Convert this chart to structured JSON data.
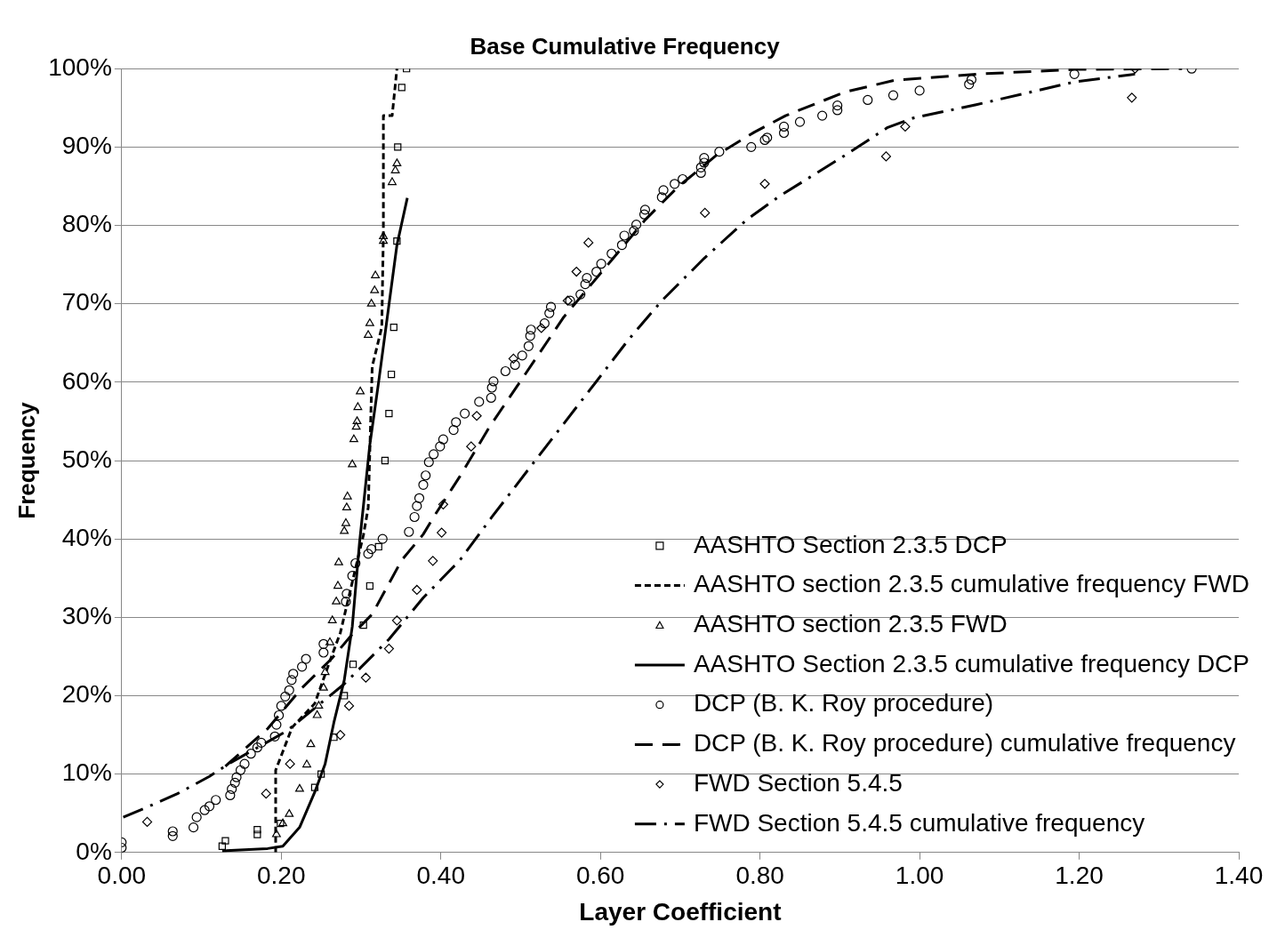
{
  "chart_data": {
    "type": "scatter",
    "title": "Base Cumulative Frequency",
    "xlabel": "Layer Coefficient",
    "ylabel": "Frequency",
    "xlim": [
      0,
      1.4
    ],
    "xticks": [
      {
        "value": 0,
        "label": "0.00"
      },
      {
        "value": 0.2,
        "label": "0.20"
      },
      {
        "value": 0.4,
        "label": "0.40"
      },
      {
        "value": 0.6,
        "label": "0.60"
      },
      {
        "value": 0.8,
        "label": "0.80"
      },
      {
        "value": 1,
        "label": "1.00"
      },
      {
        "value": 1.2,
        "label": "1.20"
      },
      {
        "value": 1.4,
        "label": "1.40"
      }
    ],
    "ylim": [
      0,
      100
    ],
    "yticks": [
      {
        "value": 0,
        "label": "0%"
      },
      {
        "value": 10,
        "label": "10%"
      },
      {
        "value": 20,
        "label": "20%"
      },
      {
        "value": 30,
        "label": "30%"
      },
      {
        "value": 40,
        "label": "40%"
      },
      {
        "value": 50,
        "label": "50%"
      },
      {
        "value": 60,
        "label": "60%"
      },
      {
        "value": 70,
        "label": "70%"
      },
      {
        "value": 80,
        "label": "80%"
      },
      {
        "value": 90,
        "label": "90%"
      },
      {
        "value": 100,
        "label": "100%"
      }
    ],
    "grid": "y",
    "legend": "bottom right",
    "series": [
      {
        "name": "AASHTO Section 2.3.5 DCP",
        "type": "scatter",
        "marker": "square",
        "color": "#000000",
        "x": [
          0.126,
          0.13,
          0.17,
          0.17,
          0.199,
          0.242,
          0.25,
          0.266,
          0.279,
          0.29,
          0.303,
          0.311,
          0.322,
          0.33,
          0.335,
          0.338,
          0.341,
          0.345,
          0.346,
          0.351,
          0.357
        ],
        "values": [
          0.8,
          1.5,
          2.3,
          2.9,
          3.7,
          8.3,
          10,
          14.7,
          20,
          24,
          29,
          34,
          39,
          50,
          56,
          61,
          67,
          78,
          90,
          97.6,
          100
        ]
      },
      {
        "name": "AASHTO section 2.3.5 cumulative frequency FWD",
        "type": "line",
        "marker": "none",
        "line_style": "dotted",
        "color": "#000000",
        "x": [
          0.193,
          0.193,
          0.21,
          0.214,
          0.242,
          0.263,
          0.274,
          0.303,
          0.309,
          0.314,
          0.326,
          0.328,
          0.328,
          0.339,
          0.345
        ],
        "values": [
          0,
          10.5,
          15,
          16,
          19,
          25,
          28,
          40.5,
          44,
          62,
          67,
          79,
          94,
          94,
          100
        ]
      },
      {
        "name": "AASHTO section 2.3.5 FWD",
        "type": "scatter",
        "marker": "triangle",
        "color": "#000000",
        "x": [
          0.194,
          0.202,
          0.21,
          0.223,
          0.232,
          0.237,
          0.245,
          0.247,
          0.253,
          0.255,
          0.261,
          0.264,
          0.269,
          0.271,
          0.272,
          0.279,
          0.281,
          0.282,
          0.283,
          0.289,
          0.291,
          0.294,
          0.295,
          0.296,
          0.299,
          0.309,
          0.311,
          0.313,
          0.317,
          0.318,
          0.328,
          0.328,
          0.339,
          0.343,
          0.345
        ],
        "values": [
          2.3,
          3.7,
          4.9,
          8.1,
          11.2,
          13.8,
          17.5,
          18.7,
          21,
          23,
          26.8,
          29.6,
          32,
          34,
          37,
          41,
          42,
          44,
          45.4,
          49.5,
          52.7,
          54.3,
          55,
          56.8,
          58.8,
          66,
          67.5,
          70,
          71.7,
          73.6,
          78,
          78.6,
          85.5,
          87,
          87.9
        ]
      },
      {
        "name": "AASHTO Section 2.3.5 cumulative frequency DCP",
        "type": "line",
        "marker": "none",
        "line_style": "solid",
        "color": "#000000",
        "x": [
          0.126,
          0.183,
          0.202,
          0.223,
          0.242,
          0.255,
          0.266,
          0.279,
          0.289,
          0.298,
          0.311,
          0.322,
          0.345,
          0.358
        ],
        "values": [
          0.2,
          0.5,
          0.8,
          3.2,
          7.7,
          11.3,
          16.6,
          22,
          28.8,
          39.4,
          52,
          60,
          77.5,
          83.5
        ]
      },
      {
        "name": "DCP (B. K. Roy procedure)",
        "type": "scatter",
        "marker": "circle",
        "color": "#000000",
        "x": [
          0,
          0,
          0.064,
          0.064,
          0.09,
          0.094,
          0.104,
          0.11,
          0.118,
          0.136,
          0.138,
          0.142,
          0.144,
          0.149,
          0.154,
          0.162,
          0.17,
          0.175,
          0.192,
          0.194,
          0.197,
          0.2,
          0.205,
          0.21,
          0.213,
          0.215,
          0.226,
          0.231,
          0.253,
          0.253,
          0.281,
          0.282,
          0.289,
          0.293,
          0.309,
          0.313,
          0.327,
          0.36,
          0.367,
          0.37,
          0.373,
          0.378,
          0.381,
          0.385,
          0.391,
          0.399,
          0.403,
          0.416,
          0.419,
          0.43,
          0.448,
          0.463,
          0.464,
          0.466,
          0.481,
          0.493,
          0.502,
          0.51,
          0.512,
          0.513,
          0.53,
          0.536,
          0.538,
          0.562,
          0.575,
          0.581,
          0.583,
          0.595,
          0.601,
          0.614,
          0.627,
          0.63,
          0.642,
          0.645,
          0.655,
          0.656,
          0.677,
          0.679,
          0.693,
          0.703,
          0.726,
          0.726,
          0.73,
          0.73,
          0.749,
          0.789,
          0.806,
          0.809,
          0.83,
          0.83,
          0.85,
          0.878,
          0.897,
          0.897,
          0.935,
          0.967,
          1.0,
          1.062,
          1.065,
          1.194,
          1.341
        ],
        "values": [
          0.6,
          1.3,
          2.1,
          2.7,
          3.2,
          4.5,
          5.4,
          5.9,
          6.7,
          7.3,
          8.1,
          8.9,
          9.6,
          10.5,
          11.3,
          12.6,
          13.4,
          14,
          14.8,
          16.3,
          17.5,
          18.7,
          19.9,
          20.7,
          22,
          22.8,
          23.7,
          24.7,
          25.5,
          26.6,
          32,
          33,
          35.3,
          36.9,
          38.1,
          38.7,
          40,
          40.9,
          42.8,
          44.2,
          45.2,
          46.9,
          48.1,
          49.8,
          50.8,
          51.8,
          52.7,
          53.9,
          54.9,
          56,
          57.5,
          58,
          59.3,
          60.1,
          61.4,
          62.2,
          63.4,
          64.6,
          65.9,
          66.7,
          67.5,
          68.8,
          69.6,
          70.4,
          71.2,
          72.5,
          73.3,
          74.1,
          75.1,
          76.4,
          77.5,
          78.7,
          79.3,
          80.1,
          81.4,
          82,
          83.6,
          84.5,
          85.3,
          85.9,
          86.7,
          87.4,
          88,
          88.6,
          89.4,
          90,
          90.9,
          91.2,
          91.8,
          92.6,
          93.2,
          94,
          94.7,
          95.3,
          96,
          96.6,
          97.2,
          98,
          98.6,
          99.3,
          100
        ]
      },
      {
        "name": "DCP (B. K. Roy procedure) cumulative frequency",
        "type": "line",
        "marker": "none",
        "line_style": "dashed",
        "color": "#000000",
        "x": [
          0.13,
          0.183,
          0.226,
          0.263,
          0.287,
          0.314,
          0.351,
          0.378,
          0.391,
          0.424,
          0.461,
          0.505,
          0.554,
          0.578,
          0.616,
          0.656,
          0.697,
          0.746,
          0.793,
          0.832,
          0.906,
          0.968,
          1.071,
          1.194,
          1.329
        ],
        "values": [
          11,
          15.8,
          21,
          24.7,
          27.6,
          30.4,
          37.3,
          40.6,
          42.8,
          48,
          54.3,
          60.9,
          68.3,
          71.2,
          75.8,
          80.7,
          84.9,
          89,
          91.9,
          94,
          97,
          98.5,
          99.3,
          99.9,
          100
        ]
      },
      {
        "name": "FWD Section 5.4.5",
        "type": "scatter",
        "marker": "diamond",
        "color": "#000000",
        "x": [
          0.032,
          0.181,
          0.211,
          0.274,
          0.285,
          0.306,
          0.335,
          0.345,
          0.37,
          0.39,
          0.401,
          0.403,
          0.438,
          0.445,
          0.491,
          0.526,
          0.559,
          0.57,
          0.585,
          0.731,
          0.806,
          0.958,
          0.982,
          1.266,
          1.27
        ],
        "values": [
          3.9,
          7.5,
          11.3,
          15,
          18.7,
          22.3,
          26,
          29.6,
          33.5,
          37.2,
          40.8,
          44.4,
          51.8,
          55.7,
          63,
          66.9,
          70.4,
          74.1,
          77.8,
          81.6,
          85.3,
          88.8,
          92.6,
          96.3,
          100
        ]
      },
      {
        "name": "FWD Section 5.4.5 cumulative frequency",
        "type": "line",
        "marker": "none",
        "line_style": "dashdot",
        "color": "#000000",
        "x": [
          0.002,
          0.03,
          0.07,
          0.11,
          0.134,
          0.207,
          0.279,
          0.335,
          0.378,
          0.424,
          0.464,
          0.513,
          0.554,
          0.595,
          0.635,
          0.677,
          0.73,
          0.783,
          0.824,
          0.906,
          0.96,
          0.992,
          1.071,
          1.194,
          1.27
        ],
        "values": [
          4.5,
          5.7,
          7.5,
          9.7,
          11.3,
          15.5,
          21.5,
          27.2,
          32.5,
          37.3,
          42.8,
          49.3,
          54.7,
          60.1,
          65.4,
          70.4,
          75.8,
          80.7,
          83.7,
          88.9,
          92.5,
          93.7,
          95.4,
          98.3,
          99.3
        ]
      }
    ]
  }
}
